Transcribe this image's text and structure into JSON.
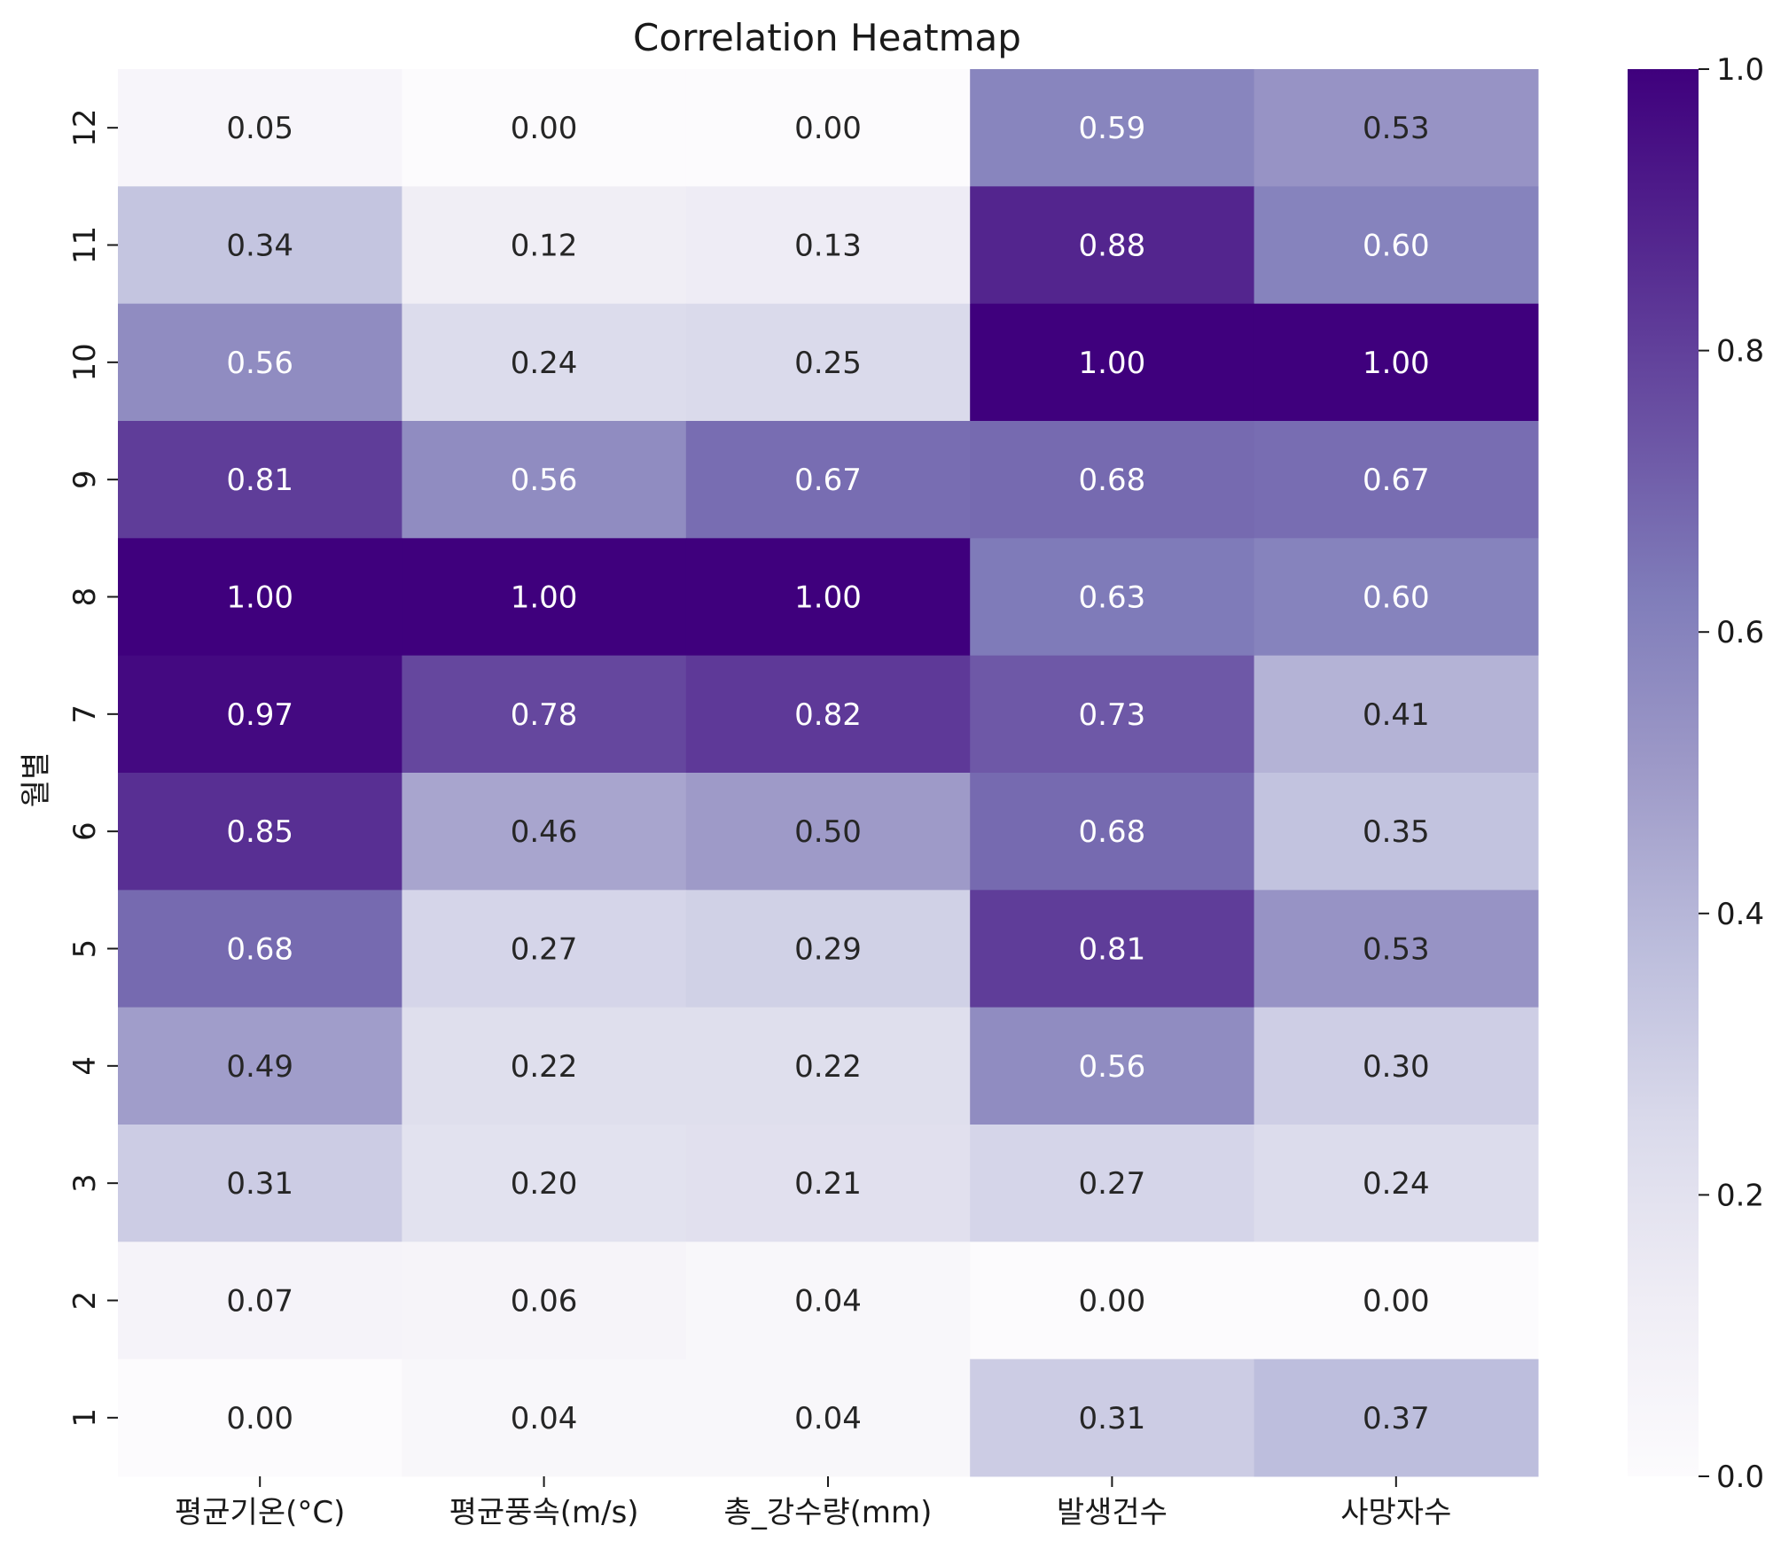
{
  "chart_data": {
    "type": "heatmap",
    "title": "Correlation Heatmap",
    "xlabel": "",
    "ylabel": "월별",
    "columns": [
      "평균기온(°C)",
      "평균풍속(m/s)",
      "총_강수량(mm)",
      "발생건수",
      "사망자수"
    ],
    "rows": [
      "12",
      "11",
      "10",
      "9",
      "8",
      "7",
      "6",
      "5",
      "4",
      "3",
      "2",
      "1"
    ],
    "values": [
      [
        0.05,
        0.0,
        0.0,
        0.59,
        0.53
      ],
      [
        0.34,
        0.12,
        0.13,
        0.88,
        0.6
      ],
      [
        0.56,
        0.24,
        0.25,
        1.0,
        1.0
      ],
      [
        0.81,
        0.56,
        0.67,
        0.68,
        0.67
      ],
      [
        1.0,
        1.0,
        1.0,
        0.63,
        0.6
      ],
      [
        0.97,
        0.78,
        0.82,
        0.73,
        0.41
      ],
      [
        0.85,
        0.46,
        0.5,
        0.68,
        0.35
      ],
      [
        0.68,
        0.27,
        0.29,
        0.81,
        0.53
      ],
      [
        0.49,
        0.22,
        0.22,
        0.56,
        0.3
      ],
      [
        0.31,
        0.2,
        0.21,
        0.27,
        0.24
      ],
      [
        0.07,
        0.06,
        0.04,
        0.0,
        0.0
      ],
      [
        0.0,
        0.04,
        0.04,
        0.31,
        0.37
      ]
    ],
    "value_format": "0.00",
    "colormap": "Purples",
    "colorbar": {
      "range": [
        0.0,
        1.0
      ],
      "ticks": [
        0.0,
        0.2,
        0.4,
        0.6,
        0.8,
        1.0
      ],
      "tick_labels": [
        "0.0",
        "0.2",
        "0.4",
        "0.6",
        "0.8",
        "1.0"
      ]
    }
  }
}
